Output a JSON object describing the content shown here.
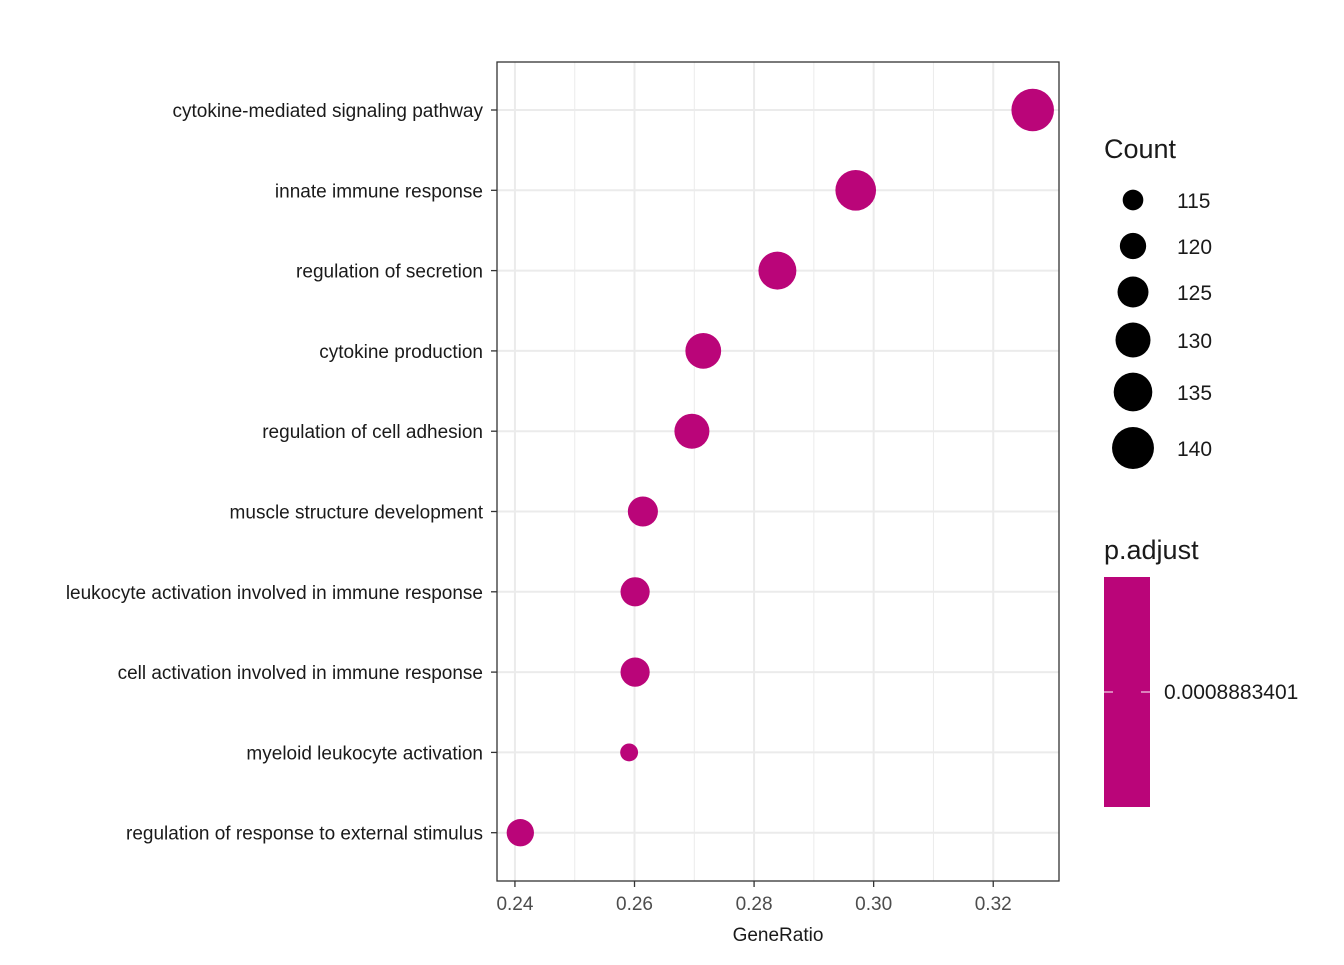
{
  "chart_data": {
    "type": "scatter",
    "xlabel": "GeneRatio",
    "ylabel": "",
    "xlim": [
      0.237,
      0.331
    ],
    "xticks": [
      0.24,
      0.26,
      0.28,
      0.3,
      0.32
    ],
    "xtick_labels": [
      "0.24",
      "0.26",
      "0.28",
      "0.30",
      "0.32"
    ],
    "grid": true,
    "categories": [
      "cytokine-mediated signaling pathway",
      "innate immune response",
      "regulation of secretion",
      "cytokine production",
      "regulation of cell adhesion",
      "muscle structure development",
      "leukocyte activation involved in immune response",
      "cell activation involved in immune response",
      "myeloid leukocyte activation",
      "regulation of response to external stimulus"
    ],
    "gene_ratio": [
      0.3266,
      0.297,
      0.2839,
      0.2715,
      0.2696,
      0.2614,
      0.2601,
      0.2601,
      0.2591,
      0.2409
    ],
    "count": [
      141,
      138,
      134,
      131,
      130,
      124,
      123,
      123,
      113,
      121
    ],
    "p_adjust": [
      0.0008883401,
      0.0008883401,
      0.0008883401,
      0.0008883401,
      0.0008883401,
      0.0008883401,
      0.0008883401,
      0.0008883401,
      0.0008883401,
      0.0008883401
    ],
    "point_color": "#BA0579",
    "size_legend": {
      "title": "Count",
      "values": [
        115,
        120,
        125,
        130,
        135,
        140
      ],
      "labels": [
        "115",
        "120",
        "125",
        "130",
        "135",
        "140"
      ]
    },
    "color_legend": {
      "title": "p.adjust",
      "label": "0.0008883401",
      "color": "#BA0579"
    },
    "legend_position": "right"
  }
}
